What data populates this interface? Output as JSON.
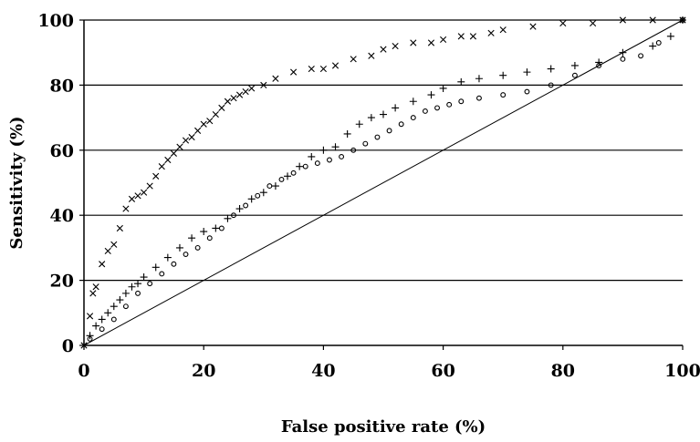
{
  "chart_data": {
    "type": "scatter",
    "title": "",
    "xlabel": "False positive rate (%)",
    "ylabel": "Sensitivity (%)",
    "xlim": [
      0,
      100
    ],
    "ylim": [
      0,
      100
    ],
    "xticks": [
      0,
      20,
      40,
      60,
      80,
      100
    ],
    "yticks": [
      0,
      20,
      40,
      60,
      80,
      100
    ],
    "grid": "horizontal",
    "legend": "none",
    "reference_line": {
      "x": [
        0,
        100
      ],
      "y": [
        0,
        100
      ]
    },
    "series": [
      {
        "marker": "x",
        "x": [
          0,
          1,
          1.5,
          2,
          3,
          4,
          5,
          6,
          7,
          8,
          9,
          10,
          11,
          12,
          13,
          14,
          15,
          16,
          17,
          18,
          19,
          20,
          21,
          22,
          23,
          24,
          25,
          26,
          27,
          28,
          30,
          32,
          35,
          38,
          40,
          42,
          45,
          48,
          50,
          52,
          55,
          58,
          60,
          63,
          65,
          68,
          70,
          75,
          80,
          85,
          90,
          95,
          100
        ],
        "y": [
          0,
          9,
          16,
          18,
          25,
          29,
          31,
          36,
          42,
          45,
          46,
          47,
          49,
          52,
          55,
          57,
          59,
          61,
          63,
          64,
          66,
          68,
          69,
          71,
          73,
          75,
          76,
          77,
          78,
          79,
          80,
          82,
          84,
          85,
          85,
          86,
          88,
          89,
          91,
          92,
          93,
          93,
          94,
          95,
          95,
          96,
          97,
          98,
          99,
          99,
          100,
          100,
          100
        ]
      },
      {
        "marker": "plus",
        "x": [
          0,
          1,
          2,
          3,
          4,
          5,
          6,
          7,
          8,
          9,
          10,
          12,
          14,
          16,
          18,
          20,
          22,
          24,
          26,
          28,
          30,
          32,
          34,
          36,
          38,
          40,
          42,
          44,
          46,
          48,
          50,
          52,
          55,
          58,
          60,
          63,
          66,
          70,
          74,
          78,
          82,
          86,
          90,
          95,
          98,
          100
        ],
        "y": [
          0,
          3,
          6,
          8,
          10,
          12,
          14,
          16,
          18,
          19,
          21,
          24,
          27,
          30,
          33,
          35,
          36,
          39,
          42,
          45,
          47,
          49,
          52,
          55,
          58,
          60,
          61,
          65,
          68,
          70,
          71,
          73,
          75,
          77,
          79,
          81,
          82,
          83,
          84,
          85,
          86,
          87,
          90,
          92,
          95,
          100
        ]
      },
      {
        "marker": "circle",
        "x": [
          1,
          3,
          5,
          7,
          9,
          11,
          13,
          15,
          17,
          19,
          21,
          23,
          25,
          27,
          29,
          31,
          33,
          35,
          37,
          39,
          41,
          43,
          45,
          47,
          49,
          51,
          53,
          55,
          57,
          59,
          61,
          63,
          66,
          70,
          74,
          78,
          82,
          86,
          90,
          93,
          96,
          100
        ],
        "y": [
          2,
          5,
          8,
          12,
          16,
          19,
          22,
          25,
          28,
          30,
          33,
          36,
          40,
          43,
          46,
          49,
          51,
          53,
          55,
          56,
          57,
          58,
          60,
          62,
          64,
          66,
          68,
          70,
          72,
          73,
          74,
          75,
          76,
          77,
          78,
          80,
          83,
          86,
          88,
          89,
          93,
          100
        ]
      }
    ]
  }
}
